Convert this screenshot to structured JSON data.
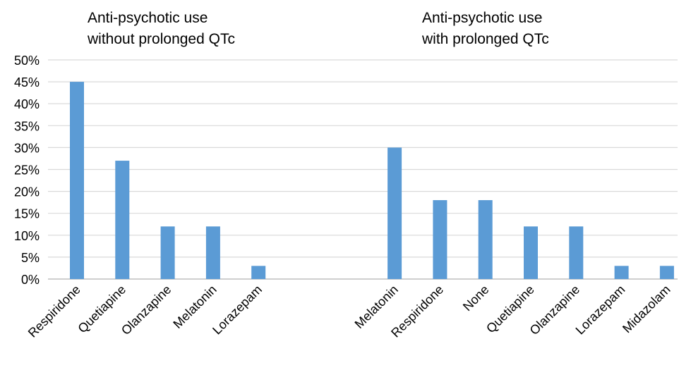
{
  "chart_data": {
    "type": "bar",
    "ylim": [
      0,
      50
    ],
    "ytick_step": 5,
    "ytick_labels": [
      "0%",
      "5%",
      "10%",
      "15%",
      "20%",
      "25%",
      "30%",
      "35%",
      "40%",
      "45%",
      "50%"
    ],
    "grid": true,
    "bar_color": "#5b9bd5",
    "grid_color": "#d9d9d9",
    "axis_color": "#bfbfbf",
    "groups": [
      {
        "title_lines": [
          "Anti-psychotic use",
          "without prolonged QTc"
        ],
        "categories": [
          "Respiridone",
          "Quetiapine",
          "Olanzapine",
          "Melatonin",
          "Lorazepam"
        ],
        "values": [
          45,
          27,
          12,
          12,
          3
        ]
      },
      {
        "title_lines": [
          "Anti-psychotic use",
          "with prolonged QTc"
        ],
        "categories": [
          "Melatonin",
          "Respiridone",
          "None",
          "Quetiapine",
          "Olanzapine",
          "Lorazepam",
          "Midazolam"
        ],
        "values": [
          30,
          18,
          18,
          12,
          12,
          3,
          3
        ]
      }
    ]
  }
}
